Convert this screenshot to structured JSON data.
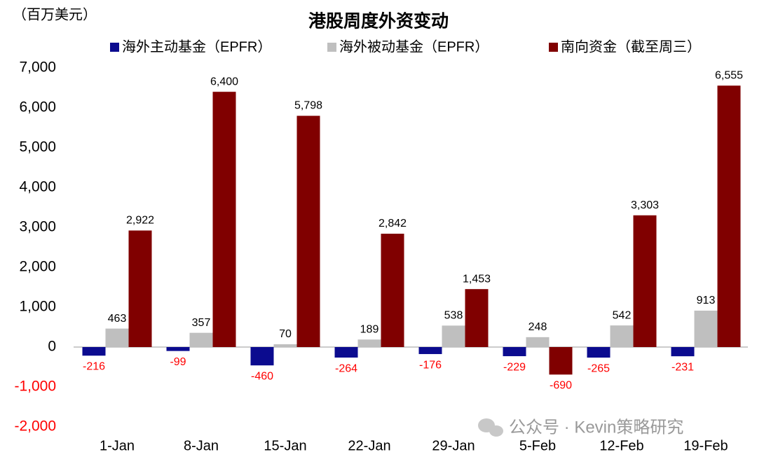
{
  "chart_data": {
    "type": "bar",
    "title": "港股周度外资变动",
    "unit_label": "（百万美元）",
    "annotations": [
      "公众号 · Kevin策略研究"
    ],
    "categories": [
      "1-Jan",
      "8-Jan",
      "15-Jan",
      "22-Jan",
      "29-Jan",
      "5-Feb",
      "12-Feb",
      "19-Feb"
    ],
    "series": [
      {
        "name": "海外主动基金（EPFR）",
        "color": "#0b0b8f",
        "values": [
          -216,
          -99,
          -460,
          -264,
          -176,
          -229,
          -265,
          -231
        ]
      },
      {
        "name": "海外被动基金（EPFR）",
        "color": "#bfbfbf",
        "values": [
          463,
          357,
          70,
          189,
          538,
          248,
          542,
          913
        ]
      },
      {
        "name": "南向资金（截至周三）",
        "color": "#800000",
        "values": [
          2922,
          6400,
          5798,
          2842,
          1453,
          -690,
          3303,
          6555
        ],
        "value_labels": [
          "2,922",
          "6,400",
          "5,798",
          "2,842",
          "1,453",
          "-690",
          "3,303",
          "6,555"
        ]
      }
    ],
    "ylim": [
      -2000,
      7000
    ],
    "yticks": [
      {
        "value": -2000,
        "label": "-2,000"
      },
      {
        "value": -1000,
        "label": "-1,000"
      },
      0,
      {
        "value": 1000,
        "label": "1,000"
      },
      {
        "value": 2000,
        "label": "2,000"
      },
      {
        "value": 3000,
        "label": "3,000"
      },
      {
        "value": 4000,
        "label": "4,000"
      },
      {
        "value": 5000,
        "label": "5,000"
      },
      {
        "value": 6000,
        "label": "6,000"
      },
      {
        "value": 7000,
        "label": "7,000"
      }
    ],
    "negative_color": "#ff0000",
    "grid": false
  }
}
